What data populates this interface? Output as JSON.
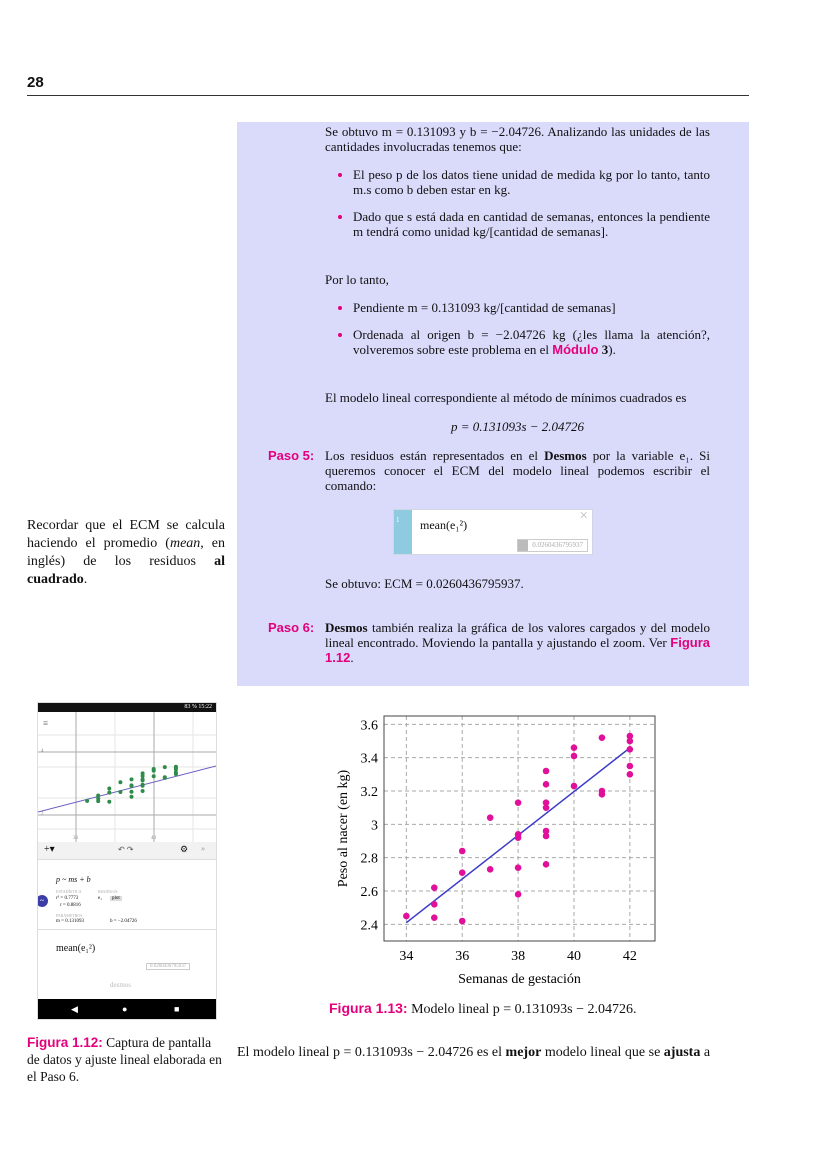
{
  "page_number": "28",
  "box": {
    "intro": "Se obtuvo m = 0.131093 y b = −2.04726. Analizando las unidades de las cantidades involucradas tenemos que:",
    "bullets1": [
      "El peso p de los datos tiene unidad de medida kg por lo tanto, tanto m.s como b deben estar en kg.",
      "Dado que s está dada en cantidad de semanas, entonces la pendiente m tendrá como unidad kg/[cantidad de semanas]."
    ],
    "por_lo_tanto": "Por lo tanto,",
    "bullet_pendiente": "Pendiente m = 0.131093 kg/[cantidad de semanas]",
    "bullet_ordenada": "Ordenada al origen b = −2.04726 kg (¿les llama la atención?, volveremos sobre este problema en el ",
    "modulo_label": "Módulo",
    "modulo_num": "3",
    "modulo_end": ").",
    "modelo_text": "El modelo lineal correspondiente al método de mínimos cuadrados es",
    "equation": "p = 0.131093s − 2.04726",
    "paso5_label": "Paso 5:",
    "paso5_a": "Los residuos están representados en el ",
    "paso5_bold": "Desmos",
    "paso5_b": " por la variable e₁. Si queremos conocer el ECM del modelo lineal podemos escribir el comando:",
    "ecm_box": {
      "index": "1",
      "expr": "mean(e₁²)",
      "result": "0.0260436795937",
      "close": "×"
    },
    "obtuvo": "Se obtuvo: ECM = 0.0260436795937.",
    "paso6_label": "Paso 6:",
    "paso6_bold": "Desmos",
    "paso6_a": " también realiza la gráfica de los valores cargados y del modelo lineal encontrado. Moviendo la pantalla y ajustando el zoom. Ver ",
    "paso6_ref": "Figura 1.12",
    "paso6_end": "."
  },
  "margin_note": {
    "a": "Recordar que el ECM se calcula haciendo el promedio (",
    "mean": "mean",
    "b": ", en inglés) de los residuos ",
    "bold": "al cuadrado",
    "end": "."
  },
  "phone": {
    "status": "83 %  15:22",
    "axis_y": [
      "4",
      "2"
    ],
    "axis_x": [
      "33",
      "40"
    ],
    "regression": "p ~ ms + b",
    "stat_label": "ESTADÍSTICA",
    "resid_label": "RESIDUOS",
    "r2": "r² = 0.7773",
    "r": "r = 0.8816",
    "resid_var": "e₁",
    "plot": "plot",
    "param_label": "PARÁMETROS",
    "m": "m = 0.131093",
    "b": "b = −2.04726",
    "mean_expr": "mean(e₁²)",
    "mean_result": "0.0260436795937",
    "powered": "desmos",
    "colors": {
      "points": "#2e8b4a",
      "line": "#6a5fc1"
    }
  },
  "fig12": {
    "label": "Figura 1.12:",
    "text": " Captura de pantalla de datos y ajuste lineal elaborada en el Paso 6."
  },
  "fig13": {
    "label": "Figura 1.13:",
    "text": " Modelo lineal p = 0.131093s − 2.04726."
  },
  "bottom": {
    "a": "El modelo lineal p = 0.131093s − 2.04726 es el ",
    "mejor": "mejor",
    "b": " modelo lineal que se ",
    "ajusta": "ajusta",
    "c": " a"
  },
  "chart_data": {
    "type": "scatter",
    "xlabel": "Semanas de gestación",
    "ylabel": "Peso al nacer (en kg)",
    "xlim": [
      33.2,
      42.9
    ],
    "ylim": [
      2.3,
      3.65
    ],
    "xticks": [
      34,
      36,
      38,
      40,
      42
    ],
    "yticks": [
      2.4,
      2.6,
      2.8,
      3,
      3.2,
      3.4,
      3.6
    ],
    "ytick_labels": [
      "2.4",
      "2.6",
      "2.8",
      "3",
      "3.2",
      "3.4",
      "3.6"
    ],
    "grid": true,
    "points": [
      [
        34,
        2.45
      ],
      [
        35,
        2.62
      ],
      [
        35,
        2.52
      ],
      [
        35,
        2.44
      ],
      [
        36,
        2.84
      ],
      [
        36,
        2.71
      ],
      [
        36,
        2.42
      ],
      [
        37,
        3.04
      ],
      [
        37,
        2.73
      ],
      [
        38,
        3.13
      ],
      [
        38,
        2.94
      ],
      [
        38,
        2.92
      ],
      [
        38,
        2.74
      ],
      [
        38,
        2.58
      ],
      [
        39,
        3.32
      ],
      [
        39,
        3.24
      ],
      [
        39,
        3.13
      ],
      [
        39,
        3.1
      ],
      [
        39,
        2.96
      ],
      [
        39,
        2.93
      ],
      [
        39,
        2.76
      ],
      [
        40,
        3.46
      ],
      [
        40,
        3.41
      ],
      [
        40,
        3.23
      ],
      [
        41,
        3.52
      ],
      [
        41,
        3.2
      ],
      [
        41,
        3.18
      ],
      [
        42,
        3.53
      ],
      [
        42,
        3.5
      ],
      [
        42,
        3.45
      ],
      [
        42,
        3.35
      ],
      [
        42,
        3.3
      ]
    ],
    "fit": {
      "slope": 0.131093,
      "intercept": -2.04726,
      "x_range": [
        34,
        42
      ]
    },
    "colors": {
      "points": "#e0109a",
      "line": "#3b3bc8"
    }
  }
}
